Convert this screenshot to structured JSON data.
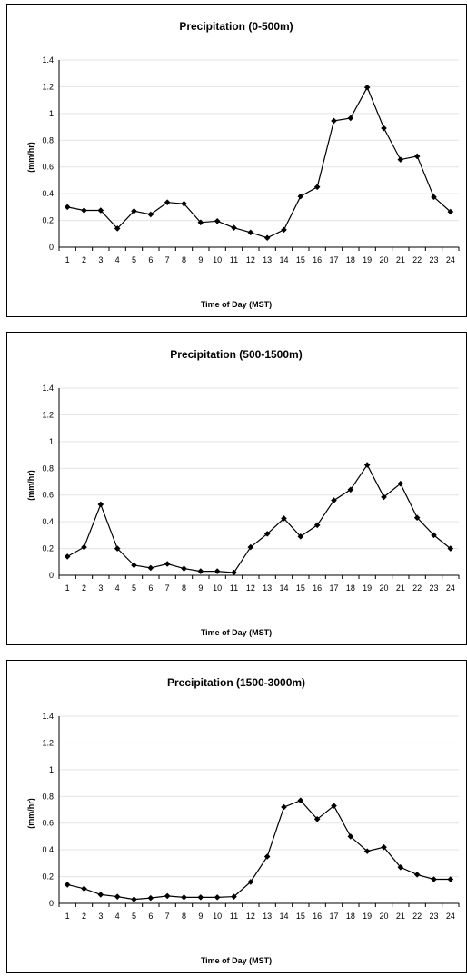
{
  "chart_data": [
    {
      "type": "line",
      "title": "Precipitation (0-500m)",
      "xlabel": "Time of Day (MST)",
      "ylabel": "(mm/hr)",
      "ylim": [
        0,
        1.4
      ],
      "yticks": [
        "0",
        "0.2",
        "0.4",
        "0.6",
        "0.8",
        "1",
        "1.2",
        "1.4"
      ],
      "categories": [
        "1",
        "2",
        "3",
        "4",
        "5",
        "6",
        "7",
        "8",
        "9",
        "10",
        "11",
        "12",
        "13",
        "14",
        "15",
        "16",
        "17",
        "18",
        "19",
        "20",
        "21",
        "22",
        "23",
        "24"
      ],
      "grid": true,
      "marker": "diamond",
      "series": [
        {
          "values": [
            0.3,
            0.275,
            0.275,
            0.14,
            0.27,
            0.245,
            0.335,
            0.325,
            0.185,
            0.195,
            0.145,
            0.11,
            0.07,
            0.13,
            0.38,
            0.45,
            0.945,
            0.965,
            1.195,
            0.89,
            0.655,
            0.68,
            0.375,
            0.265
          ]
        }
      ]
    },
    {
      "type": "line",
      "title": "Precipitation (500-1500m)",
      "xlabel": "Time of Day (MST)",
      "ylabel": "(mm/hr)",
      "ylim": [
        0,
        1.4
      ],
      "yticks": [
        "0",
        "0.2",
        "0.4",
        "0.6",
        "0.8",
        "1",
        "1.2",
        "1.4"
      ],
      "categories": [
        "1",
        "2",
        "3",
        "4",
        "5",
        "6",
        "7",
        "8",
        "9",
        "10",
        "11",
        "12",
        "13",
        "14",
        "15",
        "16",
        "17",
        "18",
        "19",
        "20",
        "21",
        "22",
        "23",
        "24"
      ],
      "grid": true,
      "marker": "diamond",
      "series": [
        {
          "values": [
            0.14,
            0.21,
            0.53,
            0.2,
            0.075,
            0.055,
            0.085,
            0.05,
            0.03,
            0.03,
            0.02,
            0.21,
            0.31,
            0.425,
            0.29,
            0.375,
            0.56,
            0.64,
            0.825,
            0.585,
            0.685,
            0.43,
            0.3,
            0.2
          ]
        }
      ]
    },
    {
      "type": "line",
      "title": "Precipitation (1500-3000m)",
      "xlabel": "Time of Day (MST)",
      "ylabel": "(mm/hr)",
      "ylim": [
        0,
        1.4
      ],
      "yticks": [
        "0",
        "0.2",
        "0.4",
        "0.6",
        "0.8",
        "1",
        "1.2",
        "1.4"
      ],
      "categories": [
        "1",
        "2",
        "3",
        "4",
        "5",
        "6",
        "7",
        "8",
        "9",
        "10",
        "11",
        "12",
        "13",
        "14",
        "15",
        "16",
        "17",
        "18",
        "19",
        "20",
        "21",
        "22",
        "23",
        "24"
      ],
      "grid": true,
      "marker": "diamond",
      "series": [
        {
          "values": [
            0.14,
            0.11,
            0.065,
            0.05,
            0.03,
            0.04,
            0.055,
            0.045,
            0.045,
            0.045,
            0.05,
            0.16,
            0.35,
            0.72,
            0.77,
            0.63,
            0.73,
            0.5,
            0.39,
            0.42,
            0.27,
            0.215,
            0.18,
            0.18
          ]
        }
      ]
    }
  ]
}
